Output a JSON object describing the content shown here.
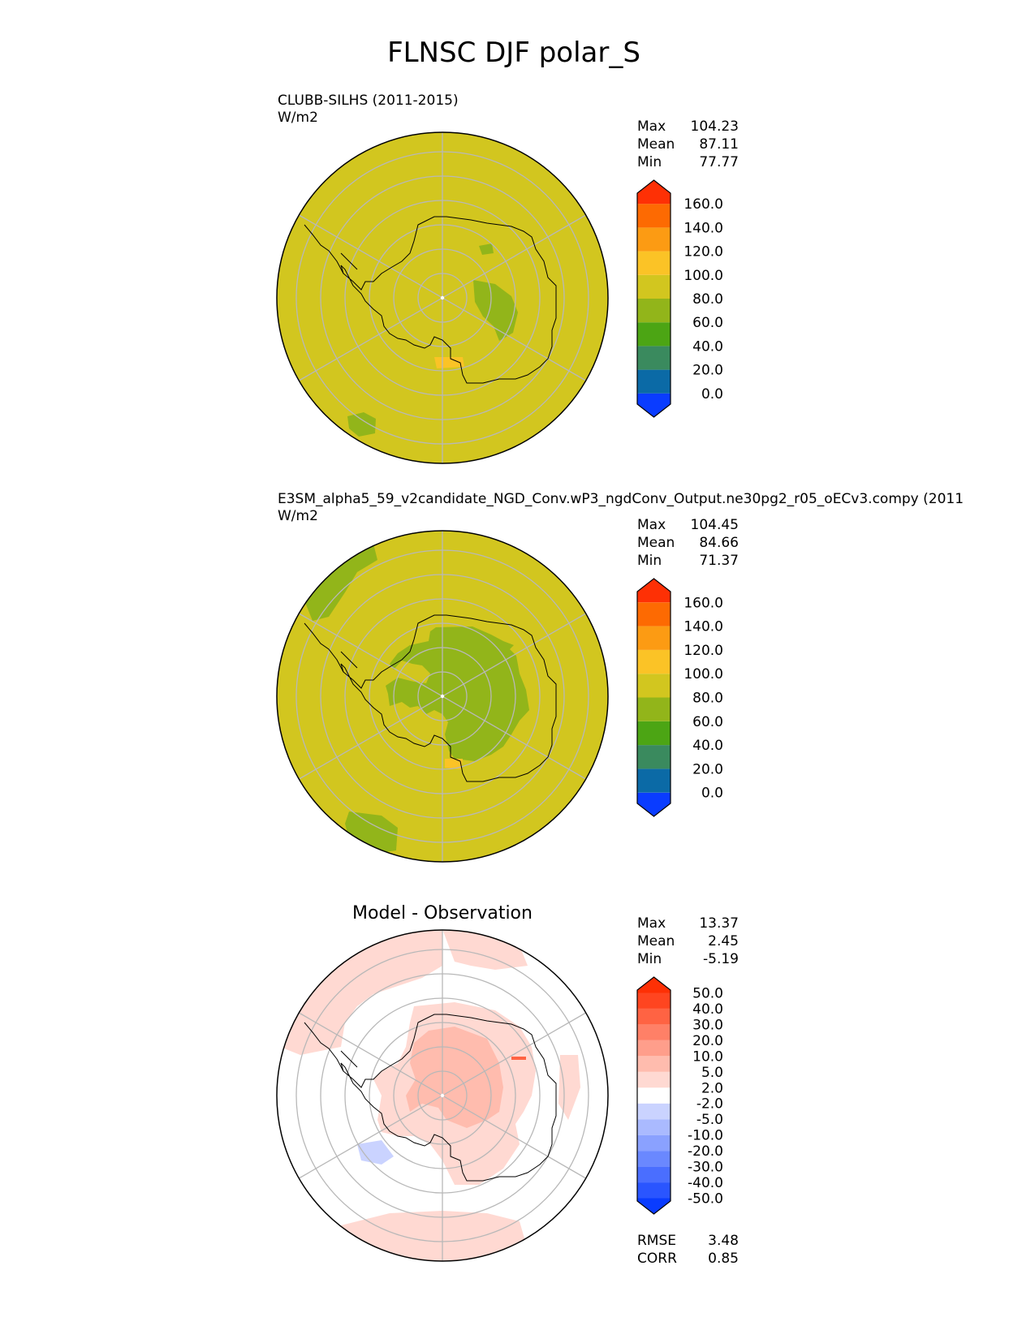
{
  "figure": {
    "title": "FLNSC DJF polar_S"
  },
  "panels": [
    {
      "id": "test",
      "label_line1": "CLUBB-SILHS (2011-2015)",
      "label_line2": "W/m2",
      "stats": [
        {
          "name": "Max",
          "value": "104.23"
        },
        {
          "name": "Mean",
          "value": "87.11"
        },
        {
          "name": "Min",
          "value": "77.77"
        }
      ],
      "colorbar": {
        "ticks": [
          "160.0",
          "140.0",
          "120.0",
          "100.0",
          "80.0",
          "60.0",
          "40.0",
          "20.0",
          "0.0"
        ],
        "colors": [
          "#0a3cff",
          "#0b6aa6",
          "#3a8a5e",
          "#4ca514",
          "#92b51a",
          "#d2c61f",
          "#fbc326",
          "#fc9b13",
          "#fd6a02",
          "#fe3005"
        ]
      }
    },
    {
      "id": "ref",
      "label_line1": "E3SM_alpha5_59_v2candidate_NGD_Conv.wP3_ngdConv_Output.ne30pg2_r05_oECv3.compy (2011",
      "label_line2": "W/m2",
      "stats": [
        {
          "name": "Max",
          "value": "104.45"
        },
        {
          "name": "Mean",
          "value": "84.66"
        },
        {
          "name": "Min",
          "value": "71.37"
        }
      ],
      "colorbar": {
        "ticks": [
          "160.0",
          "140.0",
          "120.0",
          "100.0",
          "80.0",
          "60.0",
          "40.0",
          "20.0",
          "0.0"
        ],
        "colors": [
          "#0a3cff",
          "#0b6aa6",
          "#3a8a5e",
          "#4ca514",
          "#92b51a",
          "#d2c61f",
          "#fbc326",
          "#fc9b13",
          "#fd6a02",
          "#fe3005"
        ]
      }
    },
    {
      "id": "diff",
      "title": "Model - Observation",
      "stats": [
        {
          "name": "Max",
          "value": "13.37"
        },
        {
          "name": "Mean",
          "value": "2.45"
        },
        {
          "name": "Min",
          "value": "-5.19"
        }
      ],
      "metrics": [
        {
          "name": "RMSE",
          "value": "3.48"
        },
        {
          "name": "CORR",
          "value": "0.85"
        }
      ],
      "colorbar": {
        "ticks": [
          "50.0",
          "40.0",
          "30.0",
          "20.0",
          "10.0",
          "5.0",
          "2.0",
          "-2.0",
          "-5.0",
          "-10.0",
          "-20.0",
          "-30.0",
          "-40.0",
          "-50.0"
        ],
        "colors": [
          "#0a3cff",
          "#2a55ff",
          "#4a6eff",
          "#6a88ff",
          "#8aa1ff",
          "#aabaff",
          "#cad3ff",
          "#ffffff",
          "#ffd9d2",
          "#ffbcae",
          "#ff9e8b",
          "#ff8067",
          "#ff6343",
          "#ff4520",
          "#fe3005"
        ]
      }
    }
  ],
  "chart_data": [
    {
      "type": "heatmap",
      "projection": "south polar stereographic",
      "title": "CLUBB-SILHS (2011-2015)",
      "units": "W/m2",
      "stats": {
        "max": 104.23,
        "mean": 87.11,
        "min": 77.77
      },
      "levels": [
        0,
        20,
        40,
        60,
        80,
        100,
        120,
        140,
        160
      ],
      "extend": "both",
      "field_description": "mostly 80-100 W/m2 everywhere; small 60-80 patches over East Antarctica and one near the bottom-left edge; small 100-120 patch near the pole"
    },
    {
      "type": "heatmap",
      "projection": "south polar stereographic",
      "title": "E3SM_alpha5_59_v2candidate_NGD_Conv.wP3_ngdConv_Output.ne30pg2_r05_oECv3.compy (2011",
      "units": "W/m2",
      "stats": {
        "max": 104.45,
        "mean": 84.66,
        "min": 71.37
      },
      "levels": [
        0,
        20,
        40,
        60,
        80,
        100,
        120,
        140,
        160
      ],
      "extend": "both",
      "field_description": "80-100 W/m2 over ocean; 60-80 over most of the Antarctic interior and two patches near the outer edge"
    },
    {
      "type": "heatmap",
      "projection": "south polar stereographic",
      "title": "Model - Observation",
      "stats": {
        "max": 13.37,
        "mean": 2.45,
        "min": -5.19,
        "rmse": 3.48,
        "corr": 0.85
      },
      "levels": [
        -50,
        -40,
        -30,
        -20,
        -10,
        -5,
        -2,
        2,
        5,
        10,
        20,
        30,
        40,
        50
      ],
      "extend": "both",
      "field_description": "mostly 2-10 W/m2 positive over the Antarctic interior and the upper-left ocean; near zero elsewhere; small -2 to -5 patches near the left coast"
    }
  ]
}
